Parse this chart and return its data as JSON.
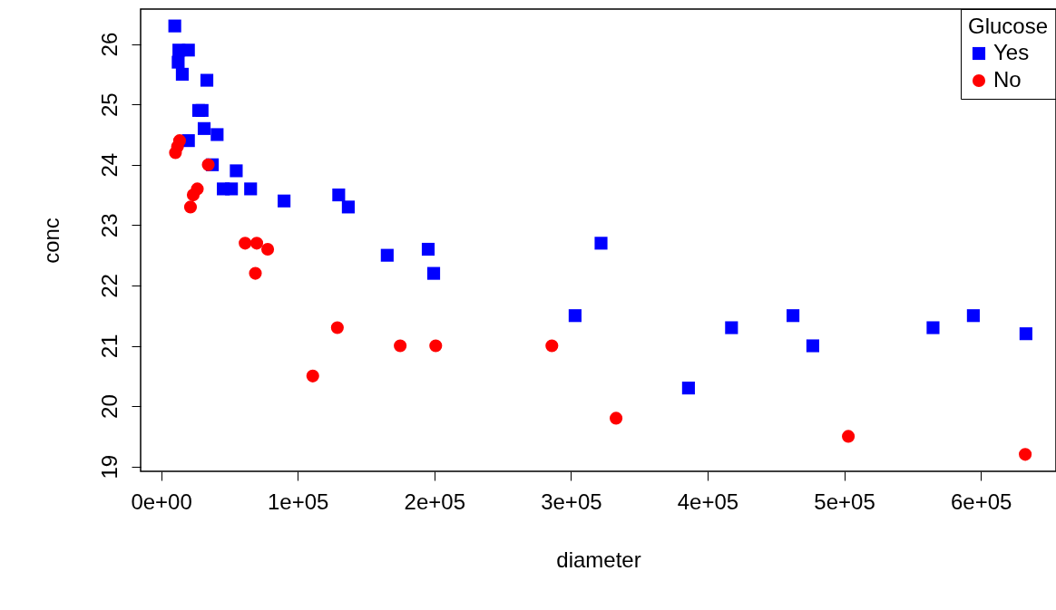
{
  "chart_data": {
    "type": "scatter",
    "xlabel": "diameter",
    "ylabel": "conc",
    "legend_title": "Glucose",
    "legend": "top right",
    "grid": false,
    "xlim": [
      -15000,
      655000
    ],
    "ylim": [
      18.92,
      26.58
    ],
    "xticks": [
      {
        "value": 0,
        "label": "0e+00"
      },
      {
        "value": 100000,
        "label": "1e+05"
      },
      {
        "value": 200000,
        "label": "2e+05"
      },
      {
        "value": 300000,
        "label": "3e+05"
      },
      {
        "value": 400000,
        "label": "4e+05"
      },
      {
        "value": 500000,
        "label": "5e+05"
      },
      {
        "value": 600000,
        "label": "6e+05"
      }
    ],
    "yticks": [
      19,
      20,
      21,
      22,
      23,
      24,
      25,
      26
    ],
    "series": [
      {
        "name": "Yes",
        "color": "#0000ff",
        "marker": "square",
        "x": [
          10000,
          13000,
          20000,
          12500,
          15500,
          33500,
          27500,
          30000,
          31500,
          41000,
          20000,
          37500,
          55000,
          45500,
          51500,
          65500,
          90000,
          130000,
          137000,
          165500,
          195500,
          199500,
          322000,
          303000,
          417500,
          462500,
          477000,
          386000,
          565000,
          594500,
          633000
        ],
        "values": [
          26.3,
          25.9,
          25.9,
          25.7,
          25.5,
          25.4,
          24.9,
          24.9,
          24.6,
          24.5,
          24.4,
          24.0,
          23.9,
          23.6,
          23.6,
          23.6,
          23.4,
          23.5,
          23.3,
          22.5,
          22.6,
          22.2,
          22.7,
          21.5,
          21.3,
          21.5,
          21.0,
          20.3,
          21.3,
          21.5,
          21.2
        ]
      },
      {
        "name": "No",
        "color": "#ff0000",
        "marker": "circle",
        "x": [
          10500,
          12000,
          13500,
          34500,
          26500,
          23500,
          21500,
          61500,
          70000,
          78000,
          69000,
          129000,
          175000,
          201000,
          111000,
          286000,
          333000,
          503000,
          632500
        ],
        "values": [
          24.2,
          24.3,
          24.4,
          24.0,
          23.6,
          23.5,
          23.3,
          22.7,
          22.7,
          22.6,
          22.2,
          21.3,
          21.0,
          21.0,
          20.5,
          21.0,
          19.8,
          19.5,
          19.2
        ]
      }
    ]
  }
}
